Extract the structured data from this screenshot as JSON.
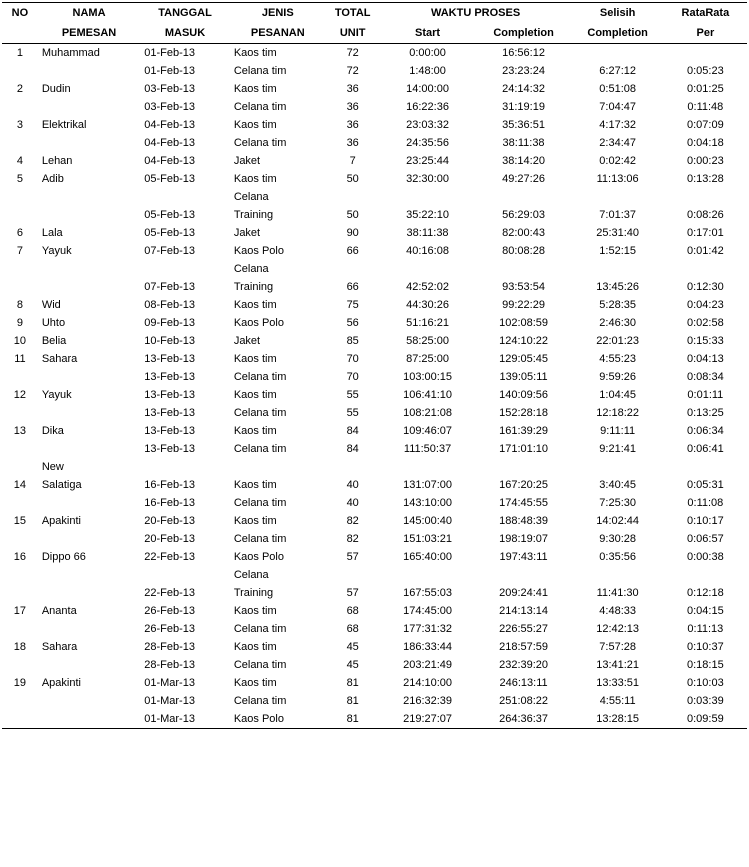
{
  "headers": {
    "row1": {
      "no": "NO",
      "nama": "NAMA",
      "tanggal": "TANGGAL",
      "jenis": "JENIS",
      "total": "TOTAL",
      "waktu": "WAKTU PROSES",
      "selisih": "Selisih",
      "rata": "RataRata"
    },
    "row2": {
      "pemesan": "PEMESAN",
      "masuk": "MASUK",
      "pesanan": "PESANAN",
      "unit": "UNIT",
      "start": "Start",
      "completion": "Completion",
      "completion2": "Completion",
      "per": "Per"
    }
  },
  "rows": [
    {
      "no": "1",
      "nama": "Muhammad",
      "tgl": "01-Feb-13",
      "jenis": "Kaos tim",
      "total": "72",
      "start": "0:00:00",
      "comp": "16:56:12",
      "selisih": "",
      "rata": ""
    },
    {
      "no": "",
      "nama": "",
      "tgl": "01-Feb-13",
      "jenis": "Celana tim",
      "total": "72",
      "start": "1:48:00",
      "comp": "23:23:24",
      "selisih": "6:27:12",
      "rata": "0:05:23"
    },
    {
      "no": "2",
      "nama": "Dudin",
      "tgl": "03-Feb-13",
      "jenis": "Kaos tim",
      "total": "36",
      "start": "14:00:00",
      "comp": "24:14:32",
      "selisih": "0:51:08",
      "rata": "0:01:25"
    },
    {
      "no": "",
      "nama": "",
      "tgl": "03-Feb-13",
      "jenis": "Celana tim",
      "total": "36",
      "start": "16:22:36",
      "comp": "31:19:19",
      "selisih": "7:04:47",
      "rata": "0:11:48"
    },
    {
      "no": "3",
      "nama": "Elektrikal",
      "tgl": "04-Feb-13",
      "jenis": "Kaos tim",
      "total": "36",
      "start": "23:03:32",
      "comp": "35:36:51",
      "selisih": "4:17:32",
      "rata": "0:07:09"
    },
    {
      "no": "",
      "nama": "",
      "tgl": "04-Feb-13",
      "jenis": "Celana tim",
      "total": "36",
      "start": "24:35:56",
      "comp": "38:11:38",
      "selisih": "2:34:47",
      "rata": "0:04:18"
    },
    {
      "no": "4",
      "nama": "Lehan",
      "tgl": "04-Feb-13",
      "jenis": "Jaket",
      "total": "7",
      "start": "23:25:44",
      "comp": "38:14:20",
      "selisih": "0:02:42",
      "rata": "0:00:23"
    },
    {
      "no": "5",
      "nama": "Adib",
      "tgl": "05-Feb-13",
      "jenis": "Kaos tim",
      "total": "50",
      "start": "32:30:00",
      "comp": "49:27:26",
      "selisih": "11:13:06",
      "rata": "0:13:28"
    },
    {
      "no": "",
      "nama": "",
      "tgl": "",
      "jenis": "Celana",
      "total": "",
      "start": "",
      "comp": "",
      "selisih": "",
      "rata": ""
    },
    {
      "no": "",
      "nama": "",
      "tgl": "05-Feb-13",
      "jenis": "Training",
      "total": "50",
      "start": "35:22:10",
      "comp": "56:29:03",
      "selisih": "7:01:37",
      "rata": "0:08:26"
    },
    {
      "no": "6",
      "nama": "Lala",
      "tgl": "05-Feb-13",
      "jenis": "Jaket",
      "total": "90",
      "start": "38:11:38",
      "comp": "82:00:43",
      "selisih": "25:31:40",
      "rata": "0:17:01"
    },
    {
      "no": "7",
      "nama": "Yayuk",
      "tgl": "07-Feb-13",
      "jenis": "Kaos Polo",
      "total": "66",
      "start": "40:16:08",
      "comp": "80:08:28",
      "selisih": "1:52:15",
      "rata": "0:01:42"
    },
    {
      "no": "",
      "nama": "",
      "tgl": "",
      "jenis": "Celana",
      "total": "",
      "start": "",
      "comp": "",
      "selisih": "",
      "rata": ""
    },
    {
      "no": "",
      "nama": "",
      "tgl": "07-Feb-13",
      "jenis": "Training",
      "total": "66",
      "start": "42:52:02",
      "comp": "93:53:54",
      "selisih": "13:45:26",
      "rata": "0:12:30"
    },
    {
      "no": "8",
      "nama": "Wid",
      "tgl": "08-Feb-13",
      "jenis": "Kaos tim",
      "total": "75",
      "start": "44:30:26",
      "comp": "99:22:29",
      "selisih": "5:28:35",
      "rata": "0:04:23"
    },
    {
      "no": "9",
      "nama": "Uhto",
      "tgl": "09-Feb-13",
      "jenis": "Kaos Polo",
      "total": "56",
      "start": "51:16:21",
      "comp": "102:08:59",
      "selisih": "2:46:30",
      "rata": "0:02:58"
    },
    {
      "no": "10",
      "nama": "Belia",
      "tgl": "10-Feb-13",
      "jenis": "Jaket",
      "total": "85",
      "start": "58:25:00",
      "comp": "124:10:22",
      "selisih": "22:01:23",
      "rata": "0:15:33"
    },
    {
      "no": "11",
      "nama": "Sahara",
      "tgl": "13-Feb-13",
      "jenis": "Kaos tim",
      "total": "70",
      "start": "87:25:00",
      "comp": "129:05:45",
      "selisih": "4:55:23",
      "rata": "0:04:13"
    },
    {
      "no": "",
      "nama": "",
      "tgl": "13-Feb-13",
      "jenis": "Celana tim",
      "total": "70",
      "start": "103:00:15",
      "comp": "139:05:11",
      "selisih": "9:59:26",
      "rata": "0:08:34"
    },
    {
      "no": "12",
      "nama": "Yayuk",
      "tgl": "13-Feb-13",
      "jenis": "Kaos tim",
      "total": "55",
      "start": "106:41:10",
      "comp": "140:09:56",
      "selisih": "1:04:45",
      "rata": "0:01:11"
    },
    {
      "no": "",
      "nama": "",
      "tgl": "13-Feb-13",
      "jenis": "Celana tim",
      "total": "55",
      "start": "108:21:08",
      "comp": "152:28:18",
      "selisih": "12:18:22",
      "rata": "0:13:25"
    },
    {
      "no": "13",
      "nama": "Dika",
      "tgl": "13-Feb-13",
      "jenis": "Kaos tim",
      "total": "84",
      "start": "109:46:07",
      "comp": "161:39:29",
      "selisih": "9:11:11",
      "rata": "0:06:34"
    },
    {
      "no": "",
      "nama": "",
      "tgl": "13-Feb-13",
      "jenis": "Celana tim",
      "total": "84",
      "start": "111:50:37",
      "comp": "171:01:10",
      "selisih": "9:21:41",
      "rata": "0:06:41"
    },
    {
      "no": "",
      "nama": "New",
      "tgl": "",
      "jenis": "",
      "total": "",
      "start": "",
      "comp": "",
      "selisih": "",
      "rata": ""
    },
    {
      "no": "14",
      "nama": "Salatiga",
      "tgl": "16-Feb-13",
      "jenis": "Kaos tim",
      "total": "40",
      "start": "131:07:00",
      "comp": "167:20:25",
      "selisih": "3:40:45",
      "rata": "0:05:31"
    },
    {
      "no": "",
      "nama": "",
      "tgl": "16-Feb-13",
      "jenis": "Celana tim",
      "total": "40",
      "start": "143:10:00",
      "comp": "174:45:55",
      "selisih": "7:25:30",
      "rata": "0:11:08"
    },
    {
      "no": "15",
      "nama": "Apakinti",
      "tgl": "20-Feb-13",
      "jenis": "Kaos tim",
      "total": "82",
      "start": "145:00:40",
      "comp": "188:48:39",
      "selisih": "14:02:44",
      "rata": "0:10:17"
    },
    {
      "no": "",
      "nama": "",
      "tgl": "20-Feb-13",
      "jenis": "Celana tim",
      "total": "82",
      "start": "151:03:21",
      "comp": "198:19:07",
      "selisih": "9:30:28",
      "rata": "0:06:57"
    },
    {
      "no": "16",
      "nama": "Dippo 66",
      "tgl": "22-Feb-13",
      "jenis": "Kaos Polo",
      "total": "57",
      "start": "165:40:00",
      "comp": "197:43:11",
      "selisih": "0:35:56",
      "rata": "0:00:38"
    },
    {
      "no": "",
      "nama": "",
      "tgl": "",
      "jenis": "Celana",
      "total": "",
      "start": "",
      "comp": "",
      "selisih": "",
      "rata": ""
    },
    {
      "no": "",
      "nama": "",
      "tgl": "22-Feb-13",
      "jenis": "Training",
      "total": "57",
      "start": "167:55:03",
      "comp": "209:24:41",
      "selisih": "11:41:30",
      "rata": "0:12:18"
    },
    {
      "no": "17",
      "nama": "Ananta",
      "tgl": "26-Feb-13",
      "jenis": "Kaos tim",
      "total": "68",
      "start": "174:45:00",
      "comp": "214:13:14",
      "selisih": "4:48:33",
      "rata": "0:04:15"
    },
    {
      "no": "",
      "nama": "",
      "tgl": "26-Feb-13",
      "jenis": "Celana tim",
      "total": "68",
      "start": "177:31:32",
      "comp": "226:55:27",
      "selisih": "12:42:13",
      "rata": "0:11:13"
    },
    {
      "no": "18",
      "nama": "Sahara",
      "tgl": "28-Feb-13",
      "jenis": "Kaos tim",
      "total": "45",
      "start": "186:33:44",
      "comp": "218:57:59",
      "selisih": "7:57:28",
      "rata": "0:10:37"
    },
    {
      "no": "",
      "nama": "",
      "tgl": "28-Feb-13",
      "jenis": "Celana tim",
      "total": "45",
      "start": "203:21:49",
      "comp": "232:39:20",
      "selisih": "13:41:21",
      "rata": "0:18:15"
    },
    {
      "no": "19",
      "nama": "Apakinti",
      "tgl": "01-Mar-13",
      "jenis": "Kaos tim",
      "total": "81",
      "start": "214:10:00",
      "comp": "246:13:11",
      "selisih": "13:33:51",
      "rata": "0:10:03"
    },
    {
      "no": "",
      "nama": "",
      "tgl": "01-Mar-13",
      "jenis": "Celana tim",
      "total": "81",
      "start": "216:32:39",
      "comp": "251:08:22",
      "selisih": "4:55:11",
      "rata": "0:03:39"
    },
    {
      "no": "",
      "nama": "",
      "tgl": "01-Mar-13",
      "jenis": "Kaos Polo",
      "total": "81",
      "start": "219:27:07",
      "comp": "264:36:37",
      "selisih": "13:28:15",
      "rata": "0:09:59"
    }
  ]
}
